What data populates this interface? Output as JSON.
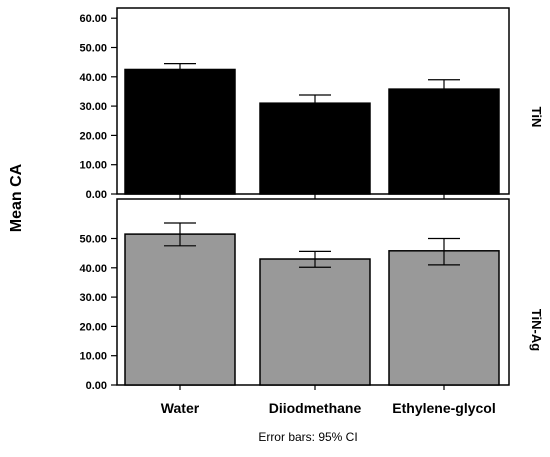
{
  "chart_data": {
    "type": "bar",
    "ylabel": "Mean CA",
    "footnote": "Error bars: 95% CI",
    "categories": [
      "Water",
      "Diiodmethane",
      "Ethylene-glycol"
    ],
    "yticks": [
      "0.00",
      "10.00",
      "20.00",
      "30.00",
      "40.00",
      "50.00",
      "60.00"
    ],
    "ylim": [
      0,
      60
    ],
    "grid": false,
    "panels": [
      {
        "name": "TiN",
        "color": "#000000",
        "values": [
          42.5,
          31.0,
          35.8
        ],
        "error_low": [
          40.5,
          28.2,
          32.6
        ],
        "error_high": [
          44.5,
          33.8,
          39.0
        ],
        "ytick_values": [
          0,
          10,
          20,
          30,
          40,
          50,
          60
        ]
      },
      {
        "name": "TiN-Ag",
        "color": "#999999",
        "values": [
          51.5,
          43.0,
          45.8
        ],
        "error_low": [
          47.5,
          40.2,
          41.0
        ],
        "error_high": [
          55.3,
          45.6,
          50.0
        ],
        "ytick_values": [
          0,
          10,
          20,
          30,
          40,
          50
        ]
      }
    ]
  }
}
